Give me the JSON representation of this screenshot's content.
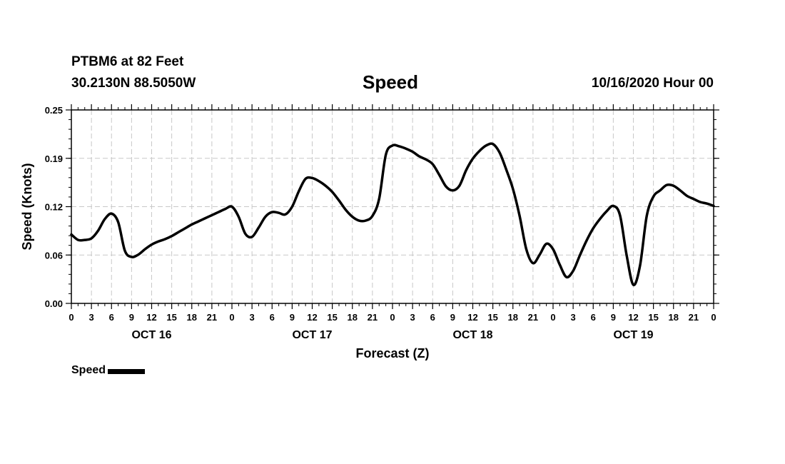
{
  "header": {
    "station": "PTBM6 at 82 Feet",
    "coords": "30.2130N 88.5050W",
    "title": "Speed",
    "run": "10/16/2020 Hour 00"
  },
  "chart_data": {
    "type": "line",
    "title": "Speed",
    "xlabel": "Forecast (Z)",
    "ylabel": "Speed (Knots)",
    "ylim": [
      0,
      0.25
    ],
    "xlim": [
      0,
      96
    ],
    "yticks": [
      "0.00",
      "0.06",
      "0.12",
      "0.19",
      "0.25"
    ],
    "ytick_values": [
      0,
      0.0625,
      0.125,
      0.1875,
      0.25
    ],
    "xtick_labels": [
      "0",
      "3",
      "6",
      "9",
      "12",
      "15",
      "18",
      "21",
      "0",
      "3",
      "6",
      "9",
      "12",
      "15",
      "18",
      "21",
      "0",
      "3",
      "6",
      "9",
      "12",
      "15",
      "18",
      "21",
      "0",
      "3",
      "6",
      "9",
      "12",
      "15",
      "18",
      "21",
      "0"
    ],
    "day_labels": [
      {
        "label": "OCT 16",
        "hour": 12
      },
      {
        "label": "OCT 17",
        "hour": 36
      },
      {
        "label": "OCT 18",
        "hour": 60
      },
      {
        "label": "OCT 19",
        "hour": 84
      }
    ],
    "grid": true,
    "legend": "bottom-left",
    "series": [
      {
        "name": "Speed",
        "color": "#000000",
        "x": [
          0,
          1,
          2,
          3,
          4,
          5,
          6,
          7,
          8,
          9,
          10,
          11,
          12,
          13,
          14,
          15,
          16,
          17,
          18,
          19,
          20,
          21,
          22,
          23,
          24,
          25,
          26,
          27,
          28,
          29,
          30,
          31,
          32,
          33,
          34,
          35,
          36,
          37,
          38,
          39,
          40,
          41,
          42,
          43,
          44,
          45,
          46,
          47,
          48,
          49,
          50,
          51,
          52,
          53,
          54,
          55,
          56,
          57,
          58,
          59,
          60,
          61,
          62,
          63,
          64,
          65,
          66,
          67,
          68,
          69,
          70,
          71,
          72,
          73,
          74,
          75,
          76,
          77,
          78,
          79,
          80,
          81,
          82,
          83,
          84,
          85,
          86,
          87,
          88,
          89,
          90,
          91,
          92,
          93,
          94,
          95,
          96
        ],
        "y": [
          0.089,
          0.082,
          0.082,
          0.084,
          0.094,
          0.109,
          0.116,
          0.105,
          0.068,
          0.06,
          0.063,
          0.07,
          0.076,
          0.08,
          0.083,
          0.087,
          0.092,
          0.097,
          0.102,
          0.106,
          0.11,
          0.114,
          0.118,
          0.122,
          0.125,
          0.112,
          0.09,
          0.086,
          0.098,
          0.112,
          0.118,
          0.117,
          0.115,
          0.125,
          0.145,
          0.161,
          0.162,
          0.158,
          0.152,
          0.144,
          0.133,
          0.121,
          0.112,
          0.107,
          0.107,
          0.113,
          0.135,
          0.192,
          0.204,
          0.203,
          0.2,
          0.196,
          0.19,
          0.186,
          0.18,
          0.166,
          0.151,
          0.146,
          0.152,
          0.172,
          0.187,
          0.197,
          0.204,
          0.206,
          0.195,
          0.173,
          0.148,
          0.113,
          0.07,
          0.052,
          0.063,
          0.077,
          0.07,
          0.05,
          0.034,
          0.042,
          0.062,
          0.081,
          0.097,
          0.109,
          0.119,
          0.126,
          0.114,
          0.062,
          0.024,
          0.049,
          0.113,
          0.138,
          0.146,
          0.153,
          0.152,
          0.146,
          0.139,
          0.135,
          0.131,
          0.129,
          0.126
        ]
      }
    ]
  },
  "legend": {
    "label": "Speed",
    "color": "#000000"
  }
}
